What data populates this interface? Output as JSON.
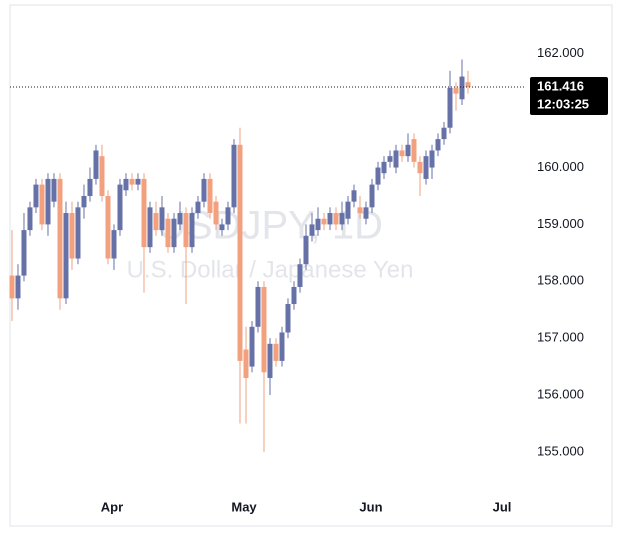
{
  "chart_data": {
    "type": "candlestick",
    "watermark": "USDJPY, 1D",
    "subtitle": "U.S. Dollar / Japanese Yen",
    "up_color": "#6671a8",
    "down_color": "#f2a07d",
    "open": [
      158.1,
      157.7,
      158.1,
      158.9,
      159.3,
      159.7,
      159.0,
      159.4,
      159.8,
      157.7,
      159.2,
      158.4,
      159.3,
      159.5,
      159.8,
      160.2,
      159.5,
      158.4,
      158.9,
      159.6,
      159.8,
      159.7,
      159.8,
      158.6,
      159.2,
      158.9,
      159.1,
      158.6,
      159.0,
      159.2,
      158.6,
      159.2,
      159.4,
      159.8,
      159.4,
      158.9,
      159.0,
      159.3,
      160.4,
      156.8,
      156.5,
      157.2,
      157.9,
      156.3,
      156.9,
      156.6,
      157.1,
      157.6,
      157.9,
      158.3,
      158.8,
      158.9,
      159.1,
      159.0,
      159.2,
      159.0,
      159.1,
      159.4,
      159.3,
      159.1,
      159.3,
      159.7,
      159.9,
      160.1,
      160.0,
      160.3,
      160.2,
      160.5,
      160.1,
      159.8,
      160.0,
      160.3,
      160.5,
      160.7,
      161.4,
      161.2,
      161.5
    ],
    "high": [
      158.9,
      158.3,
      159.2,
      159.4,
      159.8,
      159.8,
      159.9,
      159.9,
      159.9,
      159.4,
      159.4,
      159.4,
      159.7,
      160.0,
      160.4,
      160.4,
      159.6,
      159.0,
      159.8,
      159.9,
      159.9,
      159.9,
      159.9,
      159.4,
      159.4,
      159.5,
      159.2,
      159.2,
      159.4,
      159.3,
      159.3,
      159.5,
      159.9,
      159.9,
      159.5,
      159.1,
      159.4,
      160.5,
      160.7,
      157.2,
      157.3,
      158.0,
      158.0,
      157.0,
      157.0,
      157.2,
      157.7,
      158.0,
      158.4,
      159.0,
      159.2,
      159.3,
      159.2,
      159.3,
      159.3,
      159.4,
      159.5,
      159.7,
      159.5,
      159.4,
      159.8,
      160.1,
      160.2,
      160.3,
      160.4,
      160.4,
      160.6,
      160.6,
      160.2,
      160.3,
      160.4,
      160.6,
      160.8,
      161.7,
      161.5,
      161.9,
      161.7
    ],
    "low": [
      157.3,
      157.5,
      158.0,
      158.8,
      159.2,
      158.9,
      158.8,
      159.3,
      157.5,
      157.6,
      158.2,
      158.3,
      159.1,
      159.4,
      159.7,
      159.4,
      158.3,
      158.2,
      158.8,
      159.5,
      159.6,
      159.6,
      157.8,
      158.5,
      158.8,
      158.8,
      158.5,
      158.5,
      158.9,
      157.6,
      158.5,
      159.1,
      159.3,
      159.1,
      158.9,
      158.8,
      158.9,
      159.2,
      155.5,
      155.5,
      156.4,
      157.1,
      155.0,
      156.0,
      156.5,
      156.5,
      157.0,
      157.5,
      157.8,
      158.2,
      158.7,
      158.8,
      158.9,
      158.9,
      158.9,
      158.9,
      159.0,
      159.3,
      159.1,
      159.0,
      159.2,
      159.6,
      159.8,
      160.0,
      159.9,
      160.1,
      160.1,
      160.0,
      159.5,
      159.7,
      159.8,
      160.2,
      160.4,
      160.6,
      161.0,
      161.1,
      161.3
    ],
    "close": [
      157.7,
      158.1,
      158.9,
      159.3,
      159.7,
      159.0,
      159.8,
      159.8,
      157.7,
      159.2,
      158.4,
      159.3,
      159.5,
      159.8,
      160.3,
      159.5,
      158.4,
      158.9,
      159.7,
      159.8,
      159.7,
      159.8,
      158.6,
      159.3,
      158.9,
      159.3,
      158.6,
      159.1,
      159.2,
      158.6,
      159.2,
      159.4,
      159.8,
      159.2,
      159.0,
      159.0,
      159.3,
      160.4,
      156.6,
      156.3,
      157.2,
      157.9,
      156.4,
      156.9,
      156.6,
      157.1,
      157.6,
      157.9,
      158.3,
      158.8,
      159.0,
      159.1,
      159.0,
      159.2,
      159.0,
      159.2,
      159.4,
      159.6,
      159.2,
      159.3,
      159.7,
      160.0,
      160.1,
      160.2,
      160.3,
      160.2,
      160.4,
      160.1,
      159.9,
      160.2,
      160.3,
      160.5,
      160.7,
      161.4,
      161.3,
      161.6,
      161.416
    ],
    "xlim": [
      -0.33,
      85.5
    ],
    "xticks": [
      {
        "value": 16.67,
        "label": "Apr"
      },
      {
        "value": 38.67,
        "label": "May"
      },
      {
        "value": 59.83,
        "label": "Jun"
      },
      {
        "value": 81.67,
        "label": "Jul"
      }
    ],
    "ylim": [
      154.33,
      162.77
    ],
    "yticks": [
      {
        "value": 155,
        "label": "155.000"
      },
      {
        "value": 156,
        "label": "156.000"
      },
      {
        "value": 157,
        "label": "157.000"
      },
      {
        "value": 158,
        "label": "158.000"
      },
      {
        "value": 159,
        "label": "159.000"
      },
      {
        "value": 160,
        "label": "160.000"
      },
      {
        "value": 161,
        "label": "161.000"
      },
      {
        "value": 162,
        "label": "162.000"
      }
    ],
    "last_price": {
      "value": 161.416,
      "label": "161.416"
    },
    "countdown": "12:03:25"
  }
}
